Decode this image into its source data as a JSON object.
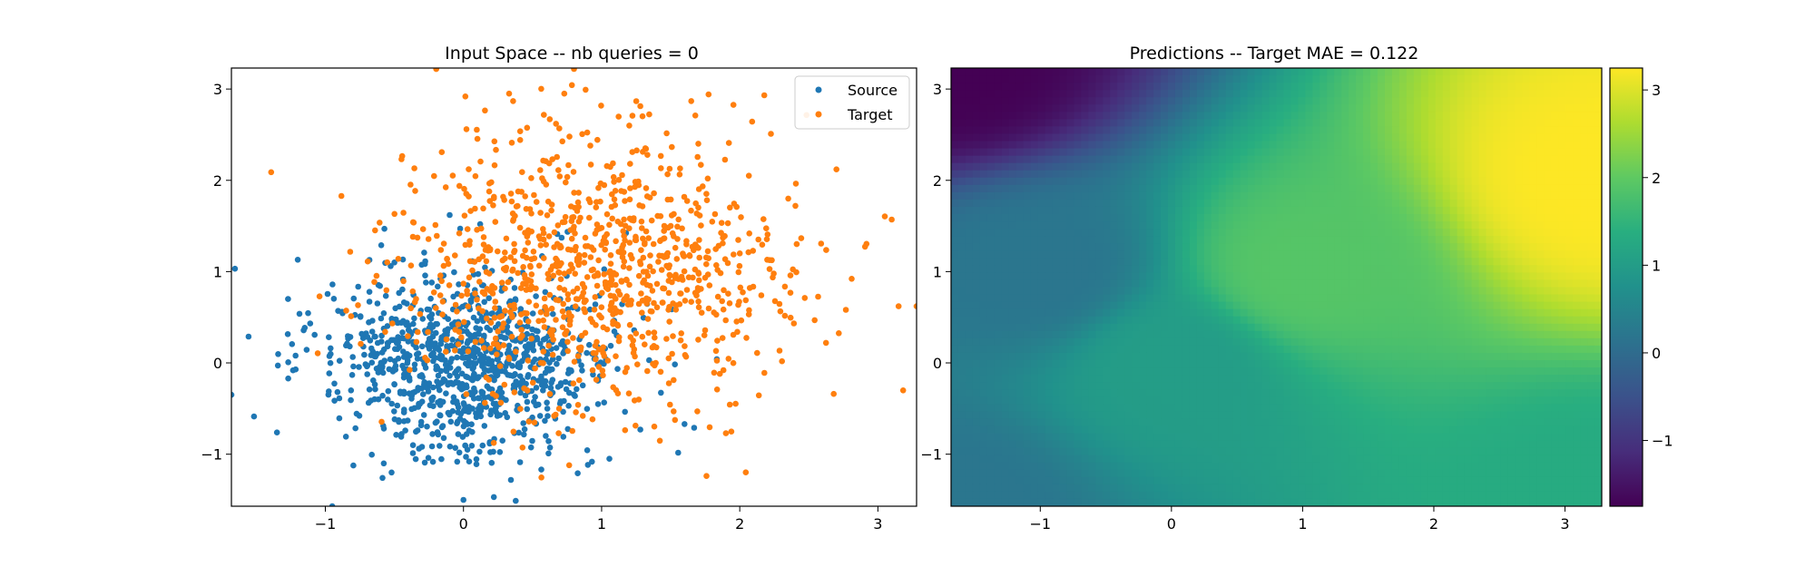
{
  "chart_data": [
    {
      "type": "scatter",
      "title": "Input Space -- nb queries = 0",
      "xlabel": "",
      "ylabel": "",
      "xlim": [
        -1.68,
        3.28
      ],
      "ylim": [
        -1.57,
        3.23
      ],
      "xticks": [
        -1,
        0,
        1,
        2,
        3
      ],
      "yticks": [
        -1,
        0,
        1,
        2,
        3
      ],
      "xtick_labels": [
        "−1",
        "0",
        "1",
        "2",
        "3"
      ],
      "ytick_labels": [
        "−1",
        "0",
        "1",
        "2",
        "3"
      ],
      "legend_position": "top-right",
      "series": [
        {
          "name": "Source",
          "color": "#1f77b4",
          "count": 1000,
          "center": [
            0.0,
            0.0
          ],
          "std": [
            0.5,
            0.5
          ],
          "sample_points": [
            [
              -1.68,
              -0.35
            ],
            [
              -1.2,
              1.13
            ],
            [
              -1.27,
              0.7
            ],
            [
              -0.95,
              -1.57
            ],
            [
              0.0,
              -1.5
            ],
            [
              0.22,
              -1.47
            ],
            [
              1.28,
              -0.73
            ],
            [
              1.6,
              -0.67
            ],
            [
              1.67,
              -0.71
            ],
            [
              -0.1,
              1.62
            ],
            [
              -0.5,
              1.1
            ],
            [
              0.5,
              0.2
            ]
          ]
        },
        {
          "name": "Target",
          "color": "#ff7f0e",
          "count": 1000,
          "center": [
            1.0,
            1.0
          ],
          "std": [
            0.75,
            0.75
          ],
          "sample_points": [
            [
              0.8,
              3.22
            ],
            [
              0.33,
              2.95
            ],
            [
              0.73,
              2.95
            ],
            [
              0.67,
              2.62
            ],
            [
              3.28,
              0.62
            ],
            [
              3.15,
              0.62
            ],
            [
              3.1,
              1.57
            ],
            [
              2.68,
              -0.34
            ],
            [
              1.2,
              2.6
            ],
            [
              2.7,
              2.12
            ],
            [
              1.5,
              1.5
            ],
            [
              2.0,
              1.2
            ],
            [
              -0.2,
              0.6
            ]
          ]
        }
      ]
    },
    {
      "type": "heatmap",
      "title": "Predictions -- Target MAE = 0.122",
      "xlabel": "",
      "ylabel": "",
      "xlim": [
        -1.68,
        3.28
      ],
      "ylim": [
        -1.57,
        3.23
      ],
      "xticks": [
        -1,
        0,
        1,
        2,
        3
      ],
      "yticks": [
        -1,
        0,
        1,
        2,
        3
      ],
      "xtick_labels": [
        "−1",
        "0",
        "1",
        "2",
        "3"
      ],
      "ytick_labels": [
        "−1",
        "0",
        "1",
        "2",
        "3"
      ],
      "colormap": "viridis",
      "colorbar": {
        "range": [
          -1.75,
          3.25
        ],
        "ticks": [
          -1,
          0,
          1,
          2,
          3
        ],
        "tick_labels": [
          "−1",
          "0",
          "1",
          "2",
          "3"
        ]
      },
      "grid_samples": [
        {
          "x": -1.68,
          "y": 3.23,
          "value": -1.75
        },
        {
          "x": -1.68,
          "y": -1.57,
          "value": 0.2
        },
        {
          "x": 3.28,
          "y": 2.0,
          "value": 3.25
        },
        {
          "x": 3.28,
          "y": -1.57,
          "value": 1.3
        },
        {
          "x": 1.0,
          "y": 1.0,
          "value": 1.9
        },
        {
          "x": 0.0,
          "y": 0.0,
          "value": 1.0
        },
        {
          "x": -1.0,
          "y": 1.0,
          "value": 0.2
        }
      ]
    }
  ]
}
